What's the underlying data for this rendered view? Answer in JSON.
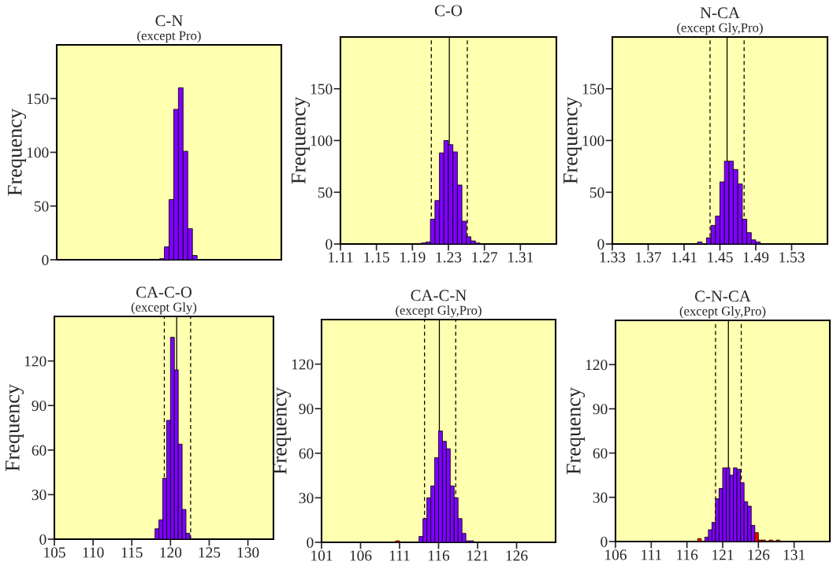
{
  "chart_data": [
    {
      "type": "bar",
      "title": "C-N",
      "subtitle": "(except Pro)",
      "ylabel": "Frequency",
      "tick_labels": "y",
      "color": "#7f00ff",
      "categories": [
        null,
        null,
        null,
        null,
        null,
        null,
        null,
        null,
        null,
        null,
        null,
        null,
        null,
        null,
        null,
        null,
        null,
        null,
        null,
        null,
        null,
        null,
        null,
        null,
        null,
        null,
        null,
        null,
        null,
        null,
        null,
        null,
        null,
        null,
        null,
        null,
        null,
        null,
        null,
        null,
        null,
        null,
        null,
        null,
        null,
        null,
        null,
        null
      ],
      "values": [
        0,
        0,
        0,
        0,
        0,
        0,
        0,
        0,
        0,
        0,
        0,
        0,
        0,
        0,
        0,
        0,
        0,
        0,
        0,
        0,
        0,
        0,
        1,
        12,
        56,
        140,
        160,
        101,
        29,
        4,
        0,
        0,
        0,
        0,
        0,
        0,
        0,
        0,
        0,
        0,
        0,
        0,
        0,
        0,
        0,
        0,
        0,
        0
      ],
      "ylim": [
        0,
        200
      ],
      "yticks": [
        0,
        50,
        100,
        150
      ]
    },
    {
      "type": "histogram",
      "title": "C-O",
      "ylabel": "Frequency",
      "color": "#7f00ff",
      "bins": [
        1.2,
        1.205,
        1.21,
        1.215,
        1.22,
        1.225,
        1.23,
        1.235,
        1.24,
        1.245,
        1.25,
        1.255,
        1.26,
        1.265
      ],
      "values": [
        1,
        2,
        24,
        42,
        88,
        100,
        96,
        89,
        57,
        22,
        7,
        3,
        1
      ],
      "xlim": [
        1.11,
        1.35
      ],
      "xticks": [
        1.11,
        1.15,
        1.19,
        1.23,
        1.27,
        1.31
      ],
      "ylim": [
        0,
        200
      ],
      "yticks": [
        0,
        50,
        100,
        150
      ],
      "ref_lines": [
        {
          "axis": "x",
          "value": 1.211,
          "line_style": "dashed"
        },
        {
          "axis": "x",
          "value": 1.231,
          "line_style": "solid"
        },
        {
          "axis": "x",
          "value": 1.251,
          "line_style": "dashed"
        }
      ]
    },
    {
      "type": "histogram",
      "title": "N-CA",
      "subtitle": "(except Gly,Pro)",
      "ylabel": "Frequency",
      "color": "#7f00ff",
      "bins": [
        1.425,
        1.43,
        1.435,
        1.44,
        1.445,
        1.45,
        1.455,
        1.46,
        1.465,
        1.47,
        1.475,
        1.48,
        1.485,
        1.49,
        1.495
      ],
      "values": [
        2,
        0,
        6,
        18,
        27,
        60,
        80,
        80,
        72,
        58,
        24,
        11,
        4,
        2
      ],
      "xlim": [
        1.33,
        1.57
      ],
      "xticks": [
        1.33,
        1.37,
        1.41,
        1.45,
        1.49,
        1.53
      ],
      "ylim": [
        0,
        200
      ],
      "yticks": [
        0,
        50,
        100,
        150
      ],
      "ref_lines": [
        {
          "axis": "x",
          "value": 1.439,
          "line_style": "dashed"
        },
        {
          "axis": "x",
          "value": 1.458,
          "line_style": "solid"
        },
        {
          "axis": "x",
          "value": 1.477,
          "line_style": "dashed"
        }
      ]
    },
    {
      "type": "histogram",
      "title": "CA-C-O",
      "subtitle": "(except Gly)",
      "ylabel": "Frequency",
      "color": "#7f00ff",
      "bins": [
        118,
        118.5,
        119,
        119.5,
        120,
        120.5,
        121,
        121.5,
        122,
        122.5
      ],
      "values": [
        7,
        13,
        41,
        80,
        136,
        114,
        64,
        20,
        4
      ],
      "xlim": [
        105,
        133.3
      ],
      "xticks": [
        105,
        110,
        115,
        120,
        125,
        130
      ],
      "ylim": [
        0,
        150
      ],
      "yticks": [
        0,
        30,
        60,
        90,
        120
      ],
      "ref_lines": [
        {
          "axis": "x",
          "value": 119.2,
          "line_style": "dashed"
        },
        {
          "axis": "x",
          "value": 120.8,
          "line_style": "solid"
        },
        {
          "axis": "x",
          "value": 122.6,
          "line_style": "dashed"
        }
      ]
    },
    {
      "type": "histogram",
      "title": "CA-C-N",
      "subtitle": "(except Gly,Pro)",
      "ylabel": "Frequency",
      "bins": [
        110.5,
        111,
        111.5,
        112,
        112.5,
        113,
        113.5,
        114,
        114.5,
        115,
        115.5,
        116,
        116.5,
        117,
        117.5,
        118,
        118.5,
        119,
        119.5,
        120,
        120.5
      ],
      "values": [
        1,
        0,
        0,
        0,
        0,
        0,
        4,
        16,
        30,
        38,
        57,
        75,
        68,
        63,
        38,
        30,
        16,
        6,
        1,
        1
      ],
      "colors": [
        "#ff0000",
        "#7f00ff",
        "#7f00ff",
        "#7f00ff",
        "#7f00ff",
        "#7f00ff",
        "#7f00ff",
        "#7f00ff",
        "#7f00ff",
        "#7f00ff",
        "#7f00ff",
        "#7f00ff",
        "#7f00ff",
        "#7f00ff",
        "#7f00ff",
        "#7f00ff",
        "#7f00ff",
        "#7f00ff",
        "#7f00ff",
        "#7f00ff"
      ],
      "xlim": [
        101,
        131
      ],
      "xticks": [
        101,
        106,
        111,
        116,
        121,
        126
      ],
      "ylim": [
        0,
        150
      ],
      "yticks": [
        0,
        30,
        60,
        90,
        120
      ],
      "ref_lines": [
        {
          "axis": "x",
          "value": 114.2,
          "line_style": "dashed"
        },
        {
          "axis": "x",
          "value": 116.1,
          "line_style": "solid"
        },
        {
          "axis": "x",
          "value": 118.2,
          "line_style": "dashed"
        }
      ]
    },
    {
      "type": "histogram",
      "title": "C-N-CA",
      "subtitle": "(except Gly,Pro)",
      "ylabel": "Frequency",
      "bins": [
        117.5,
        118,
        118.5,
        119,
        119.5,
        120,
        120.5,
        121,
        121.5,
        122,
        122.5,
        123,
        123.5,
        124,
        124.5,
        125,
        125.5,
        126,
        126.5,
        127,
        127.5,
        128,
        128.5,
        129
      ],
      "values": [
        2,
        0,
        3,
        8,
        13,
        29,
        36,
        50,
        50,
        45,
        50,
        49,
        40,
        27,
        24,
        11,
        6,
        1,
        1,
        0,
        1,
        0,
        1
      ],
      "colors": [
        "#ff0000",
        "#7f00ff",
        "#7f00ff",
        "#7f00ff",
        "#7f00ff",
        "#7f00ff",
        "#7f00ff",
        "#7f00ff",
        "#7f00ff",
        "#7f00ff",
        "#7f00ff",
        "#7f00ff",
        "#7f00ff",
        "#7f00ff",
        "#7f00ff",
        "#7f00ff",
        "#ff0000",
        "#ff0000",
        "#ff0000",
        "#ff0000",
        "#ff0000",
        "#ff0000",
        "#ff0000"
      ],
      "xlim": [
        106,
        136
      ],
      "xticks": [
        106,
        111,
        116,
        121,
        126,
        131
      ],
      "ylim": [
        0,
        150
      ],
      "yticks": [
        0,
        30,
        60,
        90,
        120
      ],
      "ref_lines": [
        {
          "axis": "x",
          "value": 120.0,
          "line_style": "dashed"
        },
        {
          "axis": "x",
          "value": 121.8,
          "line_style": "solid"
        },
        {
          "axis": "x",
          "value": 123.6,
          "line_style": "dashed"
        }
      ]
    }
  ]
}
